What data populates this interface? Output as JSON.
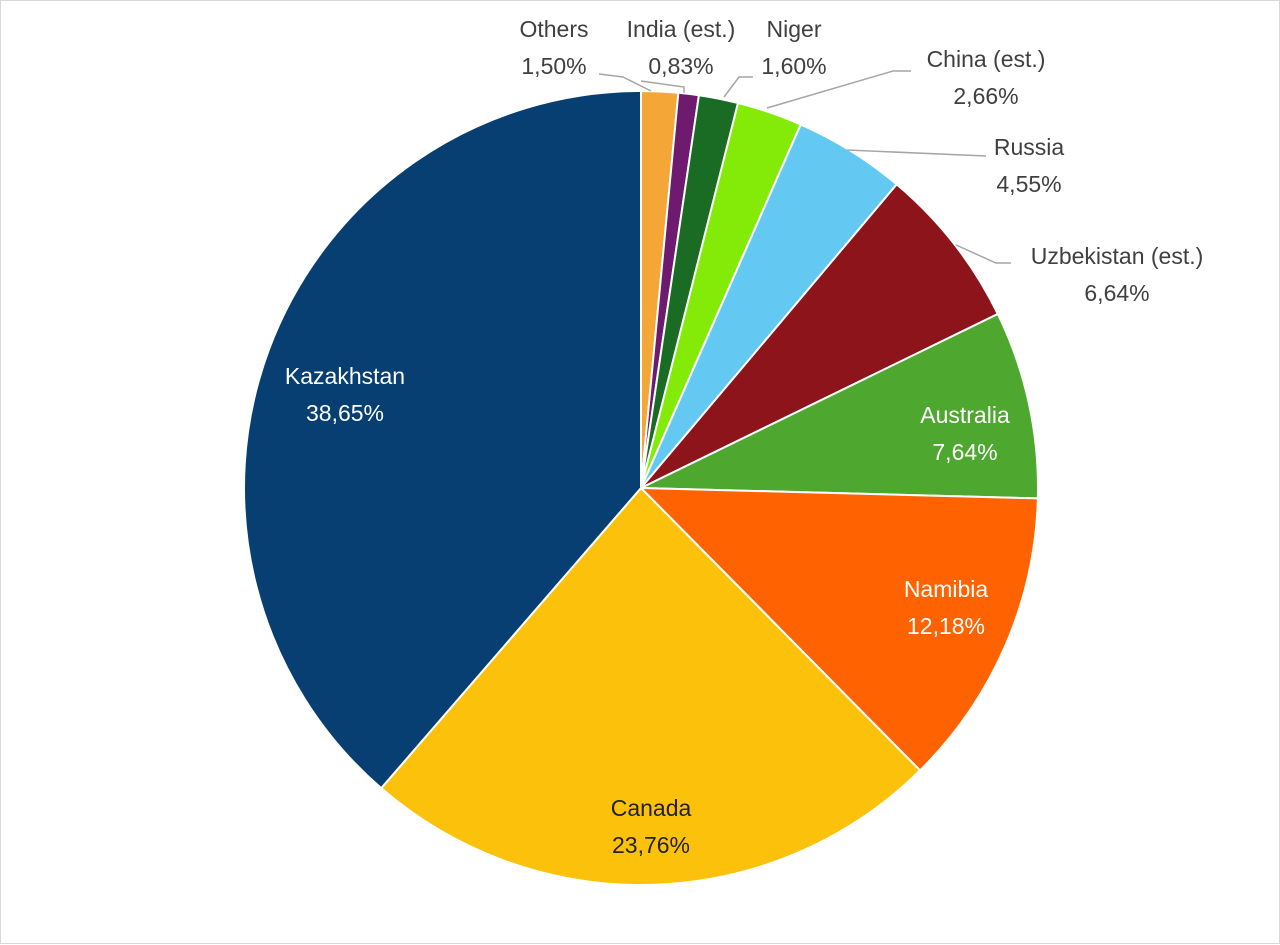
{
  "chart_data": {
    "type": "pie",
    "title": "",
    "start_angle_deg": 0,
    "direction": "clockwise",
    "slices": [
      {
        "label": "Kazakhstan",
        "value": 38.65,
        "value_text": "38,65%",
        "color": "#073f73",
        "label_color": "#ffffff",
        "label_pos": "inside"
      },
      {
        "label": "Canada",
        "value": 23.76,
        "value_text": "23,76%",
        "color": "#fcc10a",
        "label_color": "#222222",
        "label_pos": "inside"
      },
      {
        "label": "Namibia",
        "value": 12.18,
        "value_text": "12,18%",
        "color": "#ff6200",
        "label_color": "#ffffff",
        "label_pos": "inside"
      },
      {
        "label": "Australia",
        "value": 7.64,
        "value_text": "7,64%",
        "color": "#4ea72e",
        "label_color": "#ffffff",
        "label_pos": "inside"
      },
      {
        "label": "Uzbekistan (est.)",
        "value": 6.64,
        "value_text": "6,64%",
        "color": "#8e141c",
        "label_color": "#404040",
        "label_pos": "outside"
      },
      {
        "label": "Russia",
        "value": 4.55,
        "value_text": "4,55%",
        "color": "#63c9f3",
        "label_color": "#404040",
        "label_pos": "outside"
      },
      {
        "label": "China (est.)",
        "value": 2.66,
        "value_text": "2,66%",
        "color": "#84ea08",
        "label_color": "#404040",
        "label_pos": "outside"
      },
      {
        "label": "Niger",
        "value": 1.6,
        "value_text": "1,60%",
        "color": "#1a6b24",
        "label_color": "#404040",
        "label_pos": "outside"
      },
      {
        "label": "India (est.)",
        "value": 0.83,
        "value_text": "0,83%",
        "color": "#6e1a6e",
        "label_color": "#404040",
        "label_pos": "outside"
      },
      {
        "label": "Others",
        "value": 1.5,
        "value_text": "1,50%",
        "color": "#f4a637",
        "label_color": "#404040",
        "label_pos": "outside"
      }
    ]
  }
}
